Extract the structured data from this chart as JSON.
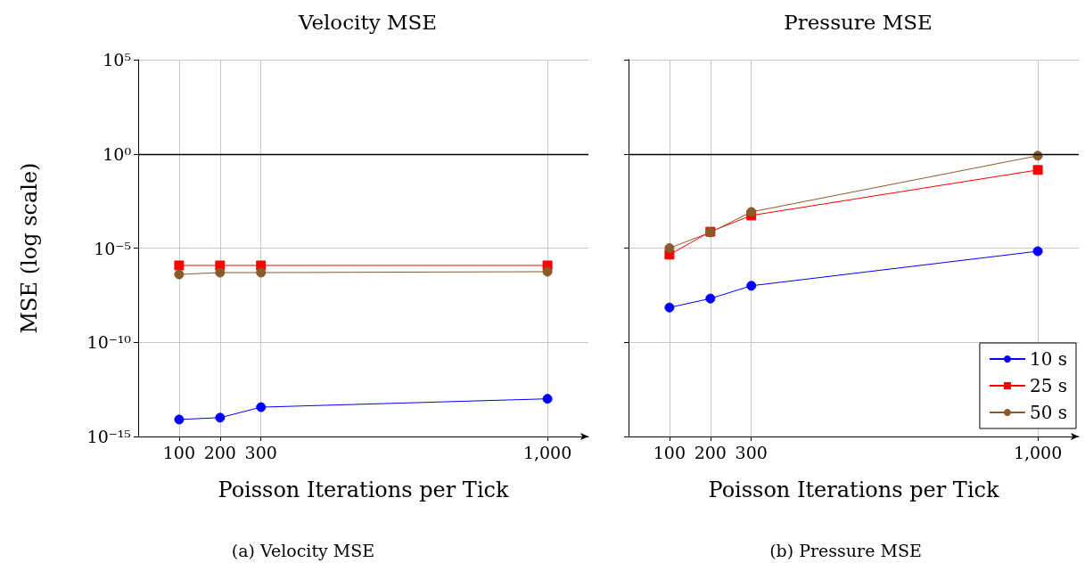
{
  "chart_data": [
    {
      "type": "line",
      "title": "Velocity MSE",
      "xlabel": "Poisson Iterations per Tick",
      "ylabel": "MSE (log scale)",
      "annotations": [
        "(a) Velocity MSE"
      ],
      "log": "y",
      "grid": true,
      "legend": false,
      "line_style": "solid",
      "x": [
        100,
        200,
        300,
        1000
      ],
      "xlim": [
        0,
        1100
      ],
      "xticks": [
        100,
        200,
        300,
        {
          "value": 1000,
          "label": "1,000"
        }
      ],
      "ylim": [
        1e-15,
        100000
      ],
      "yticks": [
        {
          "value": 1e-15,
          "label": "10⁻¹⁵"
        },
        {
          "value": 1e-10,
          "label": "10⁻¹⁰"
        },
        {
          "value": 1e-05,
          "label": "10⁻⁵"
        },
        {
          "value": 1,
          "label": "10⁰"
        },
        {
          "value": 100000,
          "label": "10⁵"
        }
      ],
      "ref_lines": [
        {
          "axis": "y",
          "value": 1,
          "color": "#000000"
        }
      ],
      "series": [
        {
          "color": "#0000ff",
          "marker": "circle",
          "values": [
            8e-15,
            1e-14,
            3.6e-14,
            1e-13
          ]
        },
        {
          "color": "#ff0000",
          "marker": "square",
          "values": [
            1.2e-06,
            1.2e-06,
            1.2e-06,
            1.2e-06
          ]
        },
        {
          "color": "#8b5a2b",
          "marker": "circle",
          "values": [
            4e-07,
            5e-07,
            5e-07,
            5.6e-07
          ]
        }
      ]
    },
    {
      "type": "line",
      "title": "Pressure MSE",
      "xlabel": "Poisson Iterations per Tick",
      "annotations": [
        "(b) Pressure MSE"
      ],
      "log": "y",
      "grid": true,
      "legend": "bottom right",
      "line_style": "solid",
      "tick_labels": "x",
      "x": [
        100,
        200,
        300,
        1000
      ],
      "xlim": [
        0,
        1100
      ],
      "xticks": [
        100,
        200,
        300,
        {
          "value": 1000,
          "label": "1,000"
        }
      ],
      "ylim": [
        1e-15,
        100000
      ],
      "yticks": [
        {
          "value": 1e-15,
          "label": null
        },
        {
          "value": 1e-10,
          "label": null
        },
        {
          "value": 1e-05,
          "label": null
        },
        {
          "value": 1,
          "label": null
        },
        {
          "value": 100000,
          "label": null
        }
      ],
      "ref_lines": [
        {
          "axis": "y",
          "value": 1,
          "color": "#000000"
        }
      ],
      "series": [
        {
          "name": "10 s",
          "color": "#0000ff",
          "marker": "circle",
          "values": [
            7e-09,
            2.1e-08,
            1e-07,
            6.8e-06
          ]
        },
        {
          "name": "25 s",
          "color": "#ff0000",
          "marker": "square",
          "values": [
            4.5e-06,
            7.4e-05,
            0.00054,
            0.14
          ]
        },
        {
          "name": "50 s",
          "color": "#8b5a2b",
          "marker": "circle",
          "values": [
            1e-05,
            6.8e-05,
            0.00083,
            0.8
          ]
        }
      ]
    }
  ]
}
